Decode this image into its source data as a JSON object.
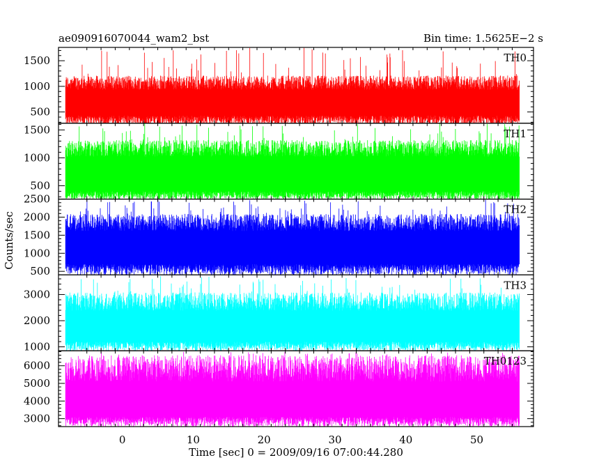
{
  "header": {
    "left_title": "ae090916070044_wam2_bst",
    "right_title": "Bin time: 1.5625E−2 s"
  },
  "chart_data": {
    "type": "line",
    "title": "ae090916070044_wam2_bst",
    "subtitle": "Bin time: 1.5625E−2 s",
    "xlabel": "Time [sec] 0 = 2009/09/16 07:00:44.280",
    "ylabel": "Counts/sec",
    "xlim": [
      -9,
      58
    ],
    "x_ticks": [
      0,
      10,
      20,
      30,
      40,
      50
    ],
    "x_range_data": [
      -8,
      56
    ],
    "grid": false,
    "panels": [
      {
        "name": "TH0",
        "color": "#ff0000",
        "ylim": [
          280,
          1760
        ],
        "y_ticks": [
          500,
          1000,
          1500
        ],
        "base": [
          240,
          430
        ],
        "peak": [
          900,
          1760
        ],
        "typ_peak": 1100
      },
      {
        "name": "TH1",
        "color": "#00ff00",
        "ylim": [
          260,
          1620
        ],
        "y_ticks": [
          500,
          1000,
          1500
        ],
        "base": [
          250,
          400
        ],
        "peak": [
          1000,
          1620
        ],
        "typ_peak": 1200
      },
      {
        "name": "TH2",
        "color": "#0000ff",
        "ylim": [
          400,
          2500
        ],
        "y_ticks": [
          500,
          1000,
          1500,
          2000,
          2500
        ],
        "base": [
          400,
          700
        ],
        "peak": [
          1700,
          2500
        ],
        "typ_peak": 1900
      },
      {
        "name": "TH3",
        "color": "#00ffff",
        "ylim": [
          850,
          3750
        ],
        "y_ticks": [
          1000,
          2000,
          3000
        ],
        "base": [
          850,
          1200
        ],
        "peak": [
          2600,
          3700
        ],
        "typ_peak": 2800
      },
      {
        "name": "TH0123",
        "color": "#ff00ff",
        "ylim": [
          2550,
          6850
        ],
        "y_ticks": [
          3000,
          4000,
          5000,
          6000
        ],
        "base": [
          2550,
          3100
        ],
        "peak": [
          5600,
          6800
        ],
        "typ_peak": 6000
      }
    ]
  }
}
